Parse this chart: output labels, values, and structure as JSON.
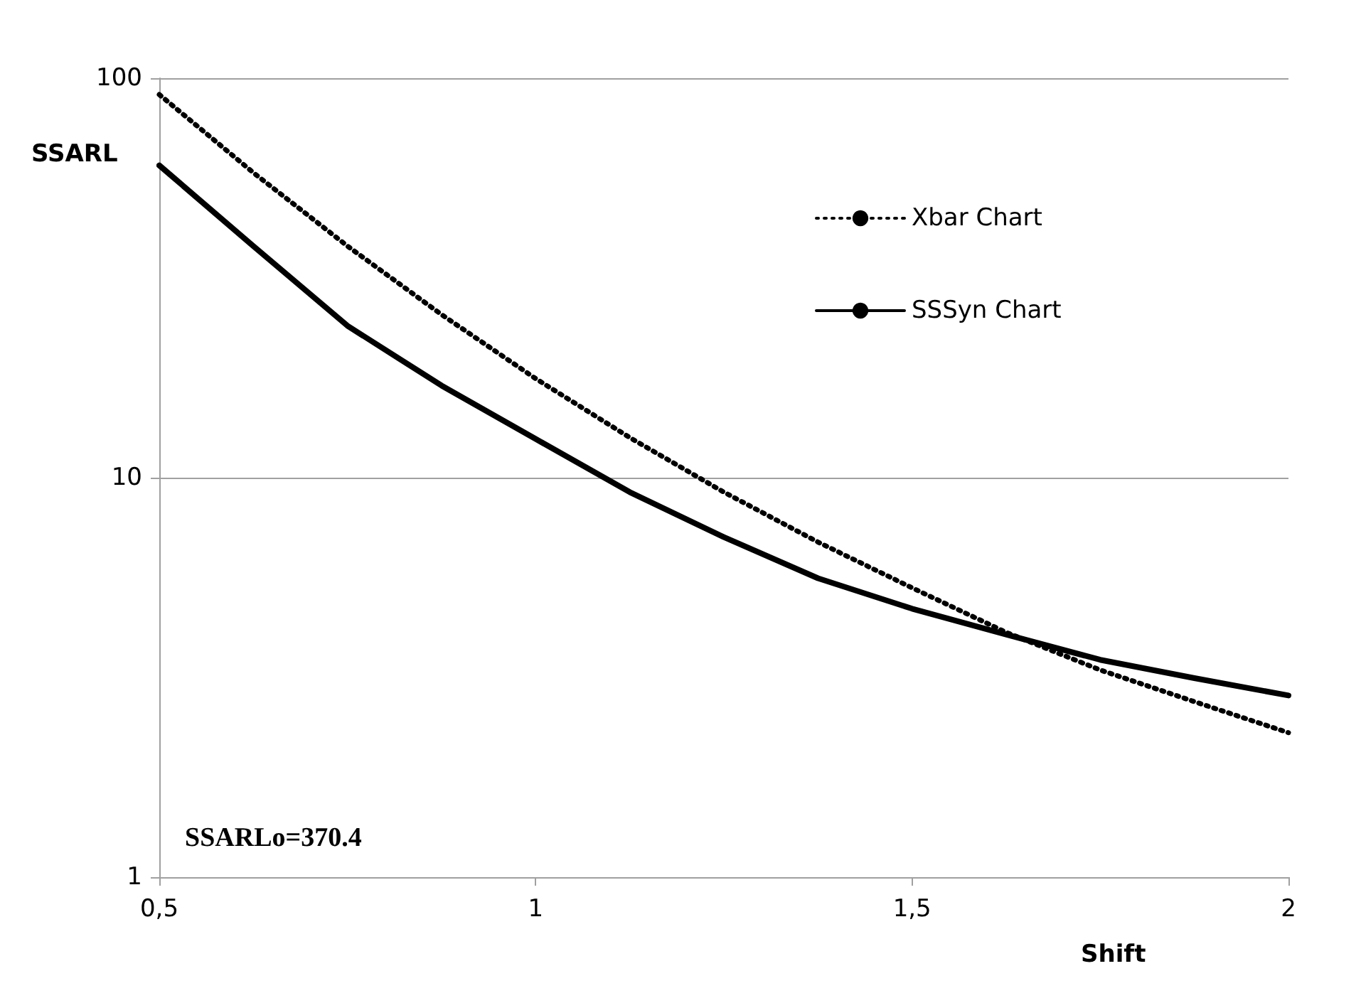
{
  "chart_data": {
    "type": "line",
    "xlabel": "Shift",
    "ylabel": "SSARL",
    "annotations": [
      "SSARLo=370.4"
    ],
    "x": [
      0.5,
      0.625,
      0.75,
      0.875,
      1,
      1.125,
      1.25,
      1.375,
      1.5,
      1.625,
      1.75,
      1.875,
      2
    ],
    "series": [
      {
        "name": "Xbar Chart",
        "color": "#000000",
        "line_style": "dotted",
        "values": [
          91,
          58,
          38,
          25.6,
          17.7,
          12.6,
          9.2,
          6.9,
          5.3,
          4.1,
          3.3,
          2.75,
          2.3
        ]
      },
      {
        "name": "SSSyn Chart",
        "color": "#000000",
        "line_style": "solid",
        "values": [
          60.5,
          38,
          24,
          17,
          12.5,
          9.2,
          7.1,
          5.6,
          4.7,
          4.05,
          3.5,
          3.15,
          2.85
        ]
      }
    ],
    "xlim": [
      0.5,
      2
    ],
    "xticks": [
      {
        "value": 0.5,
        "label": "0,5"
      },
      {
        "value": 1,
        "label": "1"
      },
      {
        "value": 1.5,
        "label": "1,5"
      },
      {
        "value": 2,
        "label": "2"
      }
    ],
    "ylim": [
      1,
      100
    ],
    "yticks": [
      1,
      10,
      100
    ],
    "log": "y",
    "grid": "y",
    "legend": "top right",
    "marker": "none"
  }
}
